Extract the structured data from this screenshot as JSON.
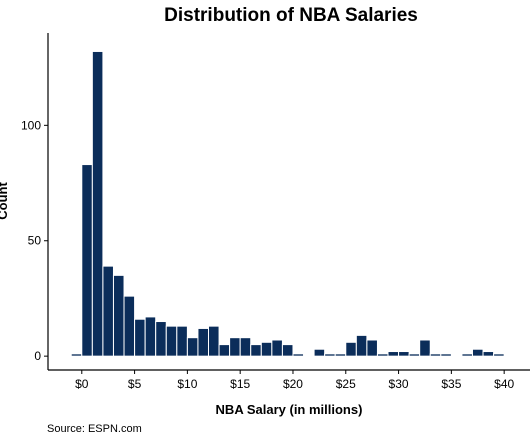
{
  "chart_data": {
    "type": "bar",
    "title": "Distribution of NBA Salaries",
    "xlabel": "NBA Salary (in millions)",
    "ylabel": "Count",
    "caption": "Source:  ESPN.com",
    "bin_width": 1,
    "bin_starts": [
      -1,
      0,
      1,
      2,
      3,
      4,
      5,
      6,
      7,
      8,
      9,
      10,
      11,
      12,
      13,
      14,
      15,
      16,
      17,
      18,
      19,
      20,
      21,
      22,
      23,
      24,
      25,
      26,
      27,
      28,
      29,
      30,
      31,
      32,
      33,
      34,
      35,
      36,
      37,
      38,
      39
    ],
    "values": [
      1,
      83,
      132,
      39,
      35,
      26,
      16,
      17,
      15,
      13,
      13,
      8,
      12,
      13,
      5,
      8,
      8,
      5,
      6,
      7,
      5,
      1,
      0,
      3,
      1,
      1,
      6,
      9,
      7,
      1,
      2,
      2,
      1,
      7,
      1,
      1,
      0,
      1,
      3,
      2,
      1
    ],
    "xlim": [
      -3.2,
      41.5
    ],
    "ylim": [
      -6,
      140
    ],
    "xticks": [
      0,
      5,
      10,
      15,
      20,
      25,
      30,
      35,
      40
    ],
    "xtick_labels": [
      "$0",
      "$5",
      "$10",
      "$15",
      "$20",
      "$25",
      "$30",
      "$35",
      "$40"
    ],
    "yticks": [
      0,
      50,
      100
    ],
    "ytick_labels": [
      "0",
      "50",
      "100"
    ],
    "bar_color": "#0b2d5a",
    "grid": false,
    "legend": "none"
  }
}
